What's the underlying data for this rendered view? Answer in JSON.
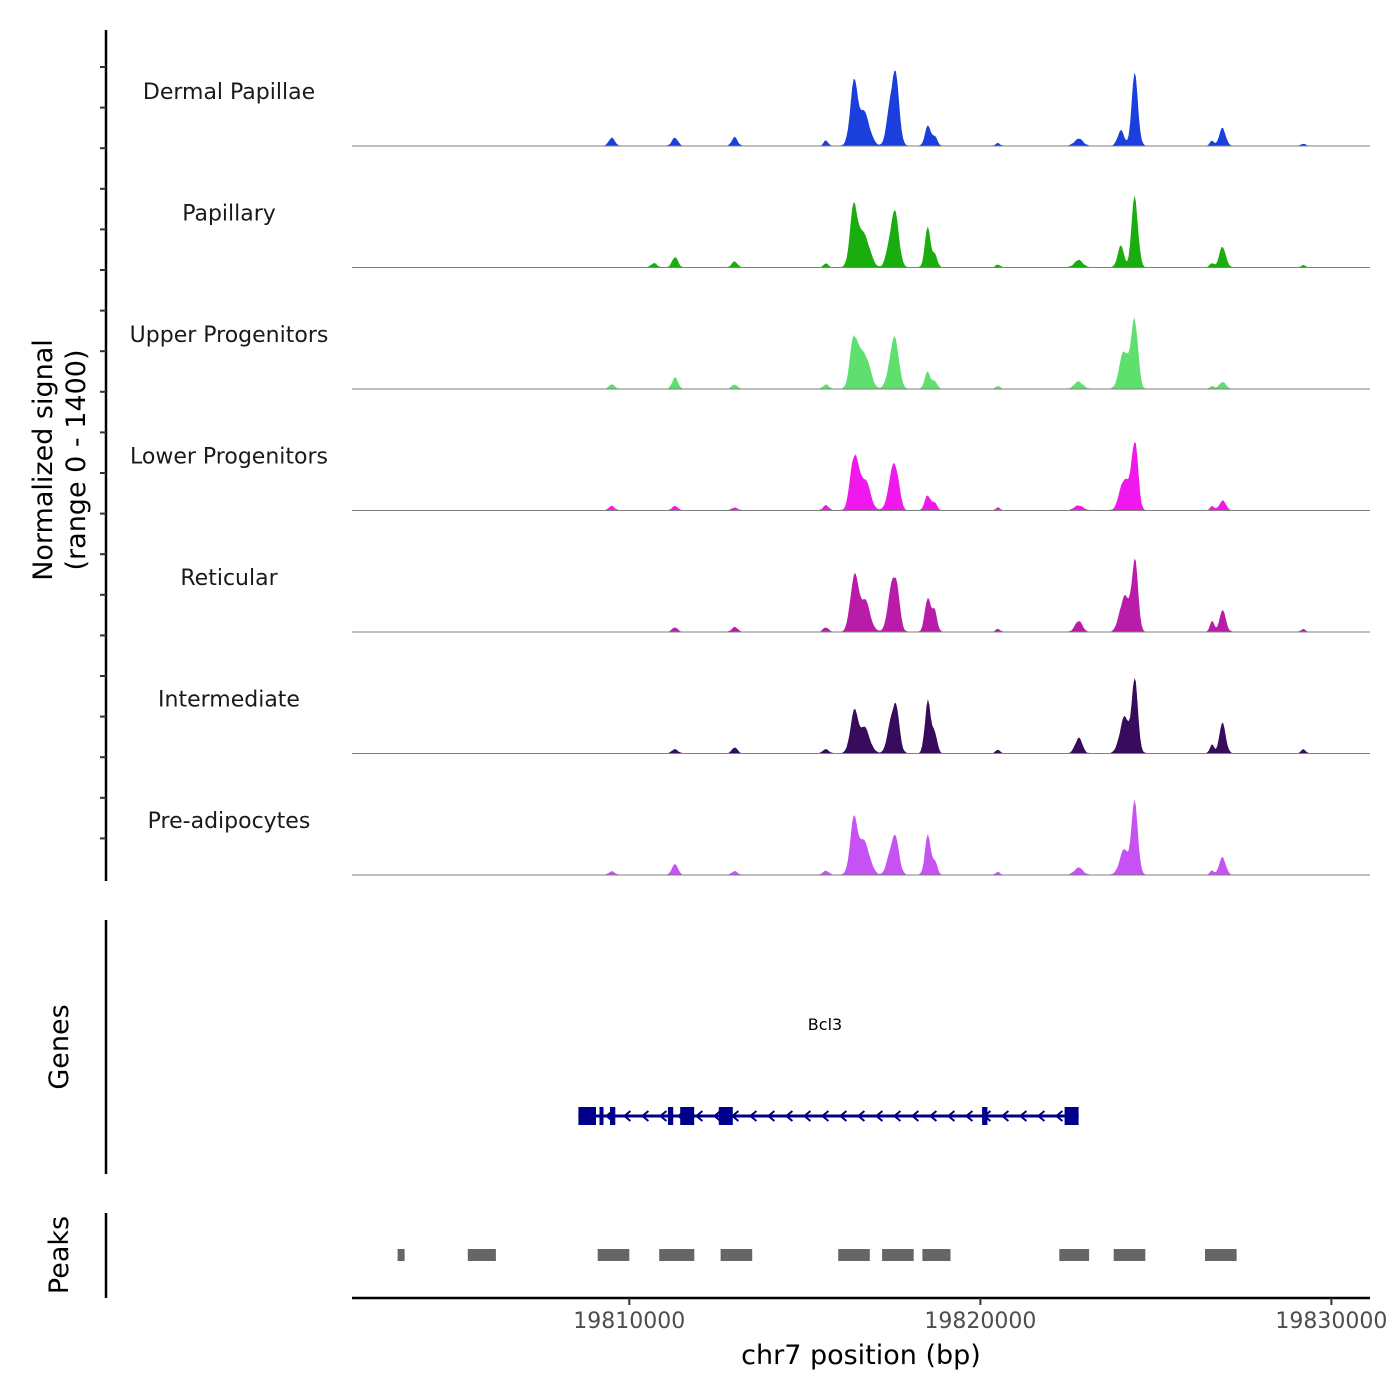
{
  "chart_data": {
    "type": "area",
    "coverage": {
      "y_axis_title_line1": "Normalized signal",
      "y_axis_title_line2": "(range 0 - 1400)",
      "ylim": [
        0,
        1400
      ],
      "tracks": [
        {
          "name": "Dermal Papillae",
          "color": "#1a3fdc",
          "peaks": [
            [
              19809500,
              0.12,
              80
            ],
            [
              19811300,
              0.12,
              80
            ],
            [
              19813000,
              0.12,
              80
            ],
            [
              19815600,
              0.08,
              60
            ],
            [
              19816400,
              0.85,
              110
            ],
            [
              19816700,
              0.45,
              150
            ],
            [
              19817600,
              0.78,
              100
            ],
            [
              19817450,
              0.55,
              110
            ],
            [
              19818500,
              0.28,
              80
            ],
            [
              19818700,
              0.14,
              70
            ],
            [
              19820500,
              0.04,
              60
            ],
            [
              19822800,
              0.1,
              120
            ],
            [
              19824000,
              0.22,
              90
            ],
            [
              19824400,
              1.0,
              90
            ],
            [
              19826900,
              0.25,
              90
            ],
            [
              19826600,
              0.07,
              60
            ],
            [
              19829200,
              0.03,
              60
            ]
          ]
        },
        {
          "name": "Papillary",
          "color": "#19ad0e",
          "peaks": [
            [
              19810700,
              0.06,
              80
            ],
            [
              19811300,
              0.15,
              80
            ],
            [
              19813000,
              0.08,
              80
            ],
            [
              19815600,
              0.06,
              60
            ],
            [
              19816400,
              0.85,
              110
            ],
            [
              19816700,
              0.45,
              150
            ],
            [
              19817600,
              0.58,
              100
            ],
            [
              19817450,
              0.4,
              110
            ],
            [
              19818500,
              0.55,
              80
            ],
            [
              19818700,
              0.18,
              70
            ],
            [
              19820500,
              0.04,
              60
            ],
            [
              19822800,
              0.1,
              120
            ],
            [
              19824000,
              0.3,
              90
            ],
            [
              19824400,
              1.0,
              90
            ],
            [
              19826900,
              0.3,
              90
            ],
            [
              19826600,
              0.06,
              60
            ],
            [
              19829200,
              0.03,
              60
            ]
          ]
        },
        {
          "name": "Upper Progenitors",
          "color": "#5fdf6e",
          "peaks": [
            [
              19809500,
              0.06,
              80
            ],
            [
              19811300,
              0.16,
              80
            ],
            [
              19813000,
              0.06,
              80
            ],
            [
              19815600,
              0.06,
              80
            ],
            [
              19816400,
              0.72,
              110
            ],
            [
              19816700,
              0.5,
              150
            ],
            [
              19817600,
              0.55,
              100
            ],
            [
              19817450,
              0.35,
              110
            ],
            [
              19818500,
              0.24,
              80
            ],
            [
              19818700,
              0.1,
              70
            ],
            [
              19820500,
              0.04,
              60
            ],
            [
              19822800,
              0.1,
              120
            ],
            [
              19824100,
              0.55,
              130
            ],
            [
              19824400,
              1.0,
              90
            ],
            [
              19826900,
              0.1,
              90
            ],
            [
              19826600,
              0.04,
              60
            ]
          ]
        },
        {
          "name": "Lower Progenitors",
          "color": "#f018ec",
          "peaks": [
            [
              19809500,
              0.06,
              80
            ],
            [
              19811300,
              0.06,
              80
            ],
            [
              19813000,
              0.04,
              80
            ],
            [
              19815600,
              0.07,
              80
            ],
            [
              19816400,
              0.75,
              110
            ],
            [
              19816700,
              0.45,
              150
            ],
            [
              19817600,
              0.5,
              100
            ],
            [
              19817450,
              0.35,
              110
            ],
            [
              19818500,
              0.22,
              80
            ],
            [
              19818700,
              0.1,
              70
            ],
            [
              19820500,
              0.04,
              60
            ],
            [
              19822800,
              0.07,
              120
            ],
            [
              19824100,
              0.45,
              130
            ],
            [
              19824400,
              1.0,
              90
            ],
            [
              19826900,
              0.14,
              90
            ],
            [
              19826600,
              0.06,
              60
            ]
          ]
        },
        {
          "name": "Reticular",
          "color": "#b81ca8",
          "peaks": [
            [
              19811300,
              0.06,
              80
            ],
            [
              19813000,
              0.07,
              80
            ],
            [
              19815600,
              0.06,
              80
            ],
            [
              19816400,
              0.75,
              110
            ],
            [
              19816700,
              0.45,
              150
            ],
            [
              19817600,
              0.6,
              100
            ],
            [
              19817450,
              0.45,
              110
            ],
            [
              19818500,
              0.5,
              80
            ],
            [
              19818700,
              0.3,
              70
            ],
            [
              19820500,
              0.04,
              60
            ],
            [
              19822800,
              0.16,
              100
            ],
            [
              19824100,
              0.5,
              130
            ],
            [
              19824400,
              1.0,
              90
            ],
            [
              19826900,
              0.3,
              90
            ],
            [
              19826600,
              0.15,
              60
            ],
            [
              19829200,
              0.04,
              60
            ]
          ]
        },
        {
          "name": "Intermediate",
          "color": "#380b5c",
          "peaks": [
            [
              19811300,
              0.06,
              80
            ],
            [
              19813000,
              0.08,
              80
            ],
            [
              19815600,
              0.06,
              80
            ],
            [
              19816400,
              0.55,
              110
            ],
            [
              19816700,
              0.35,
              150
            ],
            [
              19817600,
              0.55,
              100
            ],
            [
              19817450,
              0.35,
              110
            ],
            [
              19818500,
              0.75,
              80
            ],
            [
              19818700,
              0.3,
              70
            ],
            [
              19820500,
              0.05,
              60
            ],
            [
              19822800,
              0.22,
              100
            ],
            [
              19824100,
              0.5,
              130
            ],
            [
              19824400,
              1.0,
              90
            ],
            [
              19826900,
              0.42,
              90
            ],
            [
              19826600,
              0.12,
              60
            ],
            [
              19829200,
              0.06,
              60
            ]
          ]
        },
        {
          "name": "Pre-adipocytes",
          "color": "#c652f3",
          "peaks": [
            [
              19809500,
              0.05,
              80
            ],
            [
              19811300,
              0.16,
              80
            ],
            [
              19813000,
              0.05,
              80
            ],
            [
              19815600,
              0.06,
              80
            ],
            [
              19816400,
              0.75,
              110
            ],
            [
              19816700,
              0.45,
              150
            ],
            [
              19817600,
              0.4,
              100
            ],
            [
              19817450,
              0.3,
              110
            ],
            [
              19818500,
              0.55,
              80
            ],
            [
              19818700,
              0.2,
              70
            ],
            [
              19820500,
              0.04,
              60
            ],
            [
              19822800,
              0.1,
              120
            ],
            [
              19824100,
              0.35,
              130
            ],
            [
              19824400,
              1.0,
              90
            ],
            [
              19826900,
              0.25,
              90
            ],
            [
              19826600,
              0.06,
              60
            ]
          ]
        }
      ]
    },
    "genes": {
      "title": "Genes",
      "gene_name": "Bcl3",
      "color": "#00008b",
      "strand": "-",
      "start": 19808550,
      "end": 19822800,
      "exons": [
        [
          19808550,
          19809050
        ],
        [
          19809150,
          19809250
        ],
        [
          19809450,
          19809600
        ],
        [
          19811100,
          19811250
        ],
        [
          19811450,
          19811850
        ],
        [
          19812550,
          19812950
        ],
        [
          19820050,
          19820200
        ],
        [
          19822400,
          19822800
        ]
      ]
    },
    "peaks_track": {
      "title": "Peaks",
      "color": "#666666",
      "regions": [
        [
          19803400,
          19803600
        ],
        [
          19805400,
          19806200
        ],
        [
          19809100,
          19810000
        ],
        [
          19810850,
          19811850
        ],
        [
          19812600,
          19813500
        ],
        [
          19815950,
          19816850
        ],
        [
          19817200,
          19818100
        ],
        [
          19818350,
          19819150
        ],
        [
          19822250,
          19823100
        ],
        [
          19823800,
          19824700
        ],
        [
          19826400,
          19827300
        ]
      ]
    },
    "x_axis": {
      "title": "chr7 position (bp)",
      "range": [
        19802100,
        19831100
      ],
      "ticks": [
        19810000,
        19820000,
        19830000
      ],
      "tick_labels": [
        "19810000",
        "19820000",
        "19830000"
      ]
    }
  }
}
